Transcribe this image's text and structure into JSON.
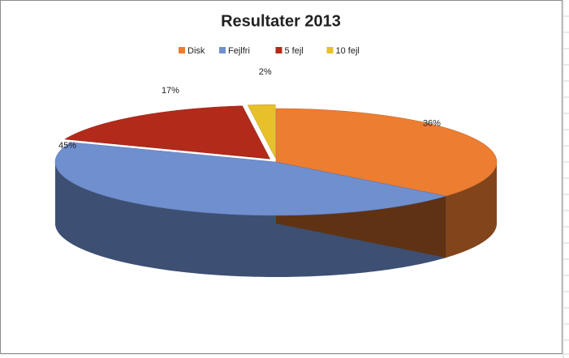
{
  "chart_data": {
    "type": "pie",
    "title": "Resultater 2013",
    "categories": [
      "Disk",
      "Fejlfri",
      "5 fejl",
      "10 fejl"
    ],
    "values": [
      36,
      45,
      17,
      2
    ],
    "value_labels": [
      "36%",
      "45%",
      "17%",
      "2%"
    ],
    "colors": [
      "#ed7d31",
      "#6f8fcf",
      "#b22a1a",
      "#e8c02a"
    ],
    "legend": "top"
  }
}
